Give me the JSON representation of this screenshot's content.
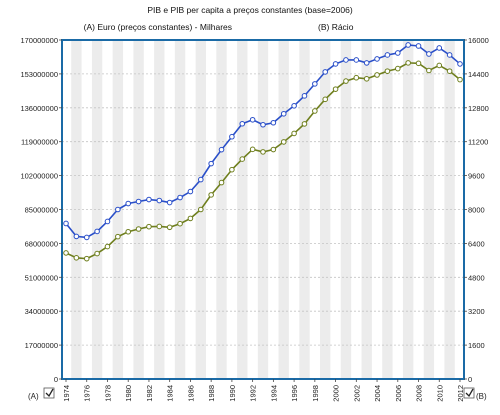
{
  "chart_data": {
    "type": "line",
    "title": "PIB e PIB per capita a preços constantes (base=2006)",
    "legend": {
      "a": "(A) Euro (preços constantes) - Milhares",
      "b": "(B) Rácio"
    },
    "x": [
      1974,
      1975,
      1976,
      1977,
      1978,
      1979,
      1980,
      1981,
      1982,
      1983,
      1984,
      1985,
      1986,
      1987,
      1988,
      1989,
      1990,
      1991,
      1992,
      1993,
      1994,
      1995,
      1996,
      1997,
      1998,
      1999,
      2000,
      2001,
      2002,
      2003,
      2004,
      2005,
      2006,
      2007,
      2008,
      2009,
      2010,
      2011,
      2012
    ],
    "x_tick_labels": [
      "1974",
      "1976",
      "1978",
      "1980",
      "1982",
      "1984",
      "1986",
      "1988",
      "1990",
      "1992",
      "1994",
      "1996",
      "1998",
      "2000",
      "2002",
      "2004",
      "2006",
      "2008",
      "2010",
      "2012"
    ],
    "y_left": {
      "label": "(A)",
      "lim": [
        0,
        170000000
      ],
      "ticks": [
        "0",
        "17000000",
        "34000000",
        "51000000",
        "68000000",
        "85000000",
        "102000000",
        "119000000",
        "136000000",
        "153000000",
        "170000000"
      ]
    },
    "y_right": {
      "label": "(B)",
      "lim": [
        0,
        16000
      ],
      "ticks": [
        "0",
        "1600",
        "3200",
        "4800",
        "6400",
        "8000",
        "9600",
        "11200",
        "12800",
        "14400",
        "16000"
      ]
    },
    "series": [
      {
        "name": "(A) Euro (preços constantes) - Milhares",
        "axis": "left",
        "color": "#2a4fc9",
        "values": [
          78000000,
          71500000,
          71000000,
          74000000,
          79000000,
          85000000,
          88000000,
          89000000,
          90000000,
          89500000,
          88500000,
          91000000,
          94000000,
          100000000,
          108000000,
          115000000,
          121500000,
          128000000,
          130000000,
          127500000,
          128500000,
          133000000,
          137000000,
          142000000,
          148000000,
          154000000,
          158000000,
          160000000,
          160000000,
          158500000,
          160500000,
          162500000,
          163500000,
          167500000,
          167000000,
          163000000,
          166000000,
          162500000,
          158000000
        ]
      },
      {
        "name": "(B) Rácio",
        "axis": "right",
        "color": "#6f7f1e",
        "values": [
          5950,
          5720,
          5680,
          5920,
          6250,
          6720,
          6950,
          7080,
          7190,
          7200,
          7160,
          7330,
          7580,
          8000,
          8690,
          9270,
          9880,
          10380,
          10840,
          10720,
          10830,
          11190,
          11590,
          12040,
          12650,
          13200,
          13680,
          14060,
          14220,
          14170,
          14350,
          14530,
          14650,
          14920,
          14900,
          14560,
          14800,
          14530,
          14130
        ]
      }
    ],
    "grid": true,
    "legend_placement": "top"
  },
  "colors": {
    "frame": "#1a6aa6",
    "band": "#ececec",
    "grid": "#c4c4c4",
    "series_a": "#2a4fc9",
    "series_b": "#6f7f1e"
  }
}
